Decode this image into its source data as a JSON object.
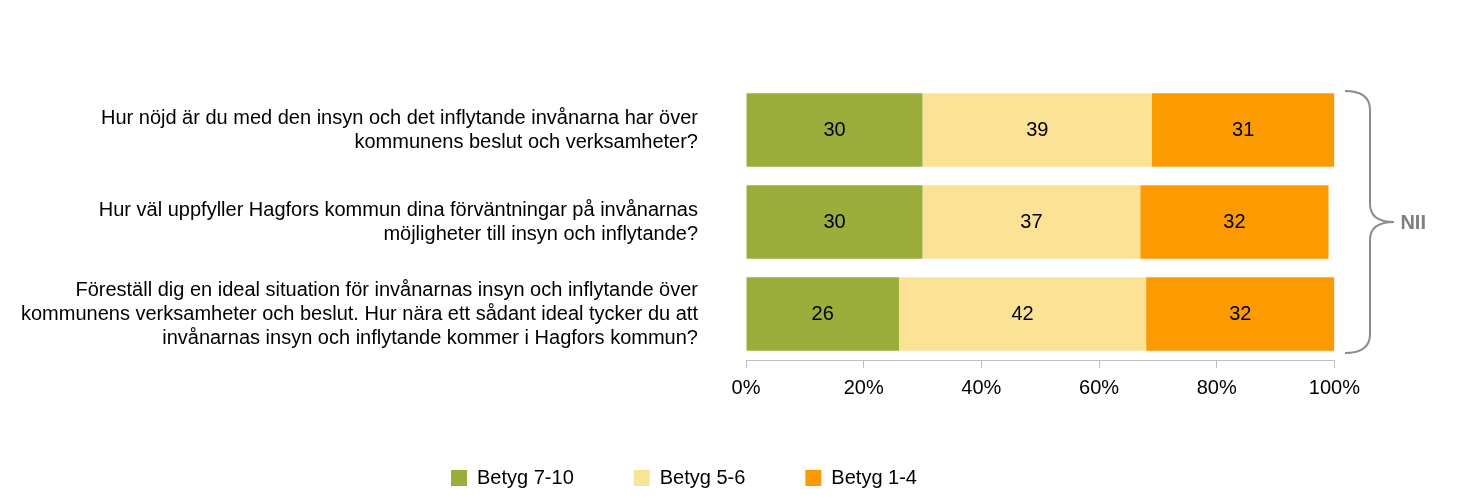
{
  "chart_data": {
    "type": "bar",
    "orientation": "horizontal",
    "stacked": true,
    "categories": [
      "Hur nöjd är du med den insyn och det inflytande invånarna har över kommunens beslut och verksamheter?",
      "Hur väl uppfyller Hagfors kommun dina förväntningar på invånarnas möjligheter till insyn och inflytande?",
      "Föreställ dig en ideal situation för invånarnas insyn och inflytande över kommunens verksamheter och beslut. Hur nära ett sådant ideal tycker du att invånarnas insyn och inflytande kommer i Hagfors kommun?"
    ],
    "series": [
      {
        "name": "Betyg 7-10",
        "color": "#9bad3a",
        "values": [
          30,
          30,
          26
        ]
      },
      {
        "name": "Betyg 5-6",
        "color": "#fce294",
        "values": [
          39,
          37,
          42
        ]
      },
      {
        "name": "Betyg 1-4",
        "color": "#fb9a01",
        "values": [
          31,
          32,
          32
        ]
      }
    ],
    "xlim": [
      0,
      100
    ],
    "xticks": [
      {
        "value": 0,
        "label": "0%"
      },
      {
        "value": 20,
        "label": "20%"
      },
      {
        "value": 40,
        "label": "40%"
      },
      {
        "value": 60,
        "label": "60%"
      },
      {
        "value": 80,
        "label": "80%"
      },
      {
        "value": 100,
        "label": "100%"
      }
    ],
    "grid": false,
    "legend": "bottom",
    "data_labels": true,
    "annotations": [
      "NII"
    ]
  }
}
